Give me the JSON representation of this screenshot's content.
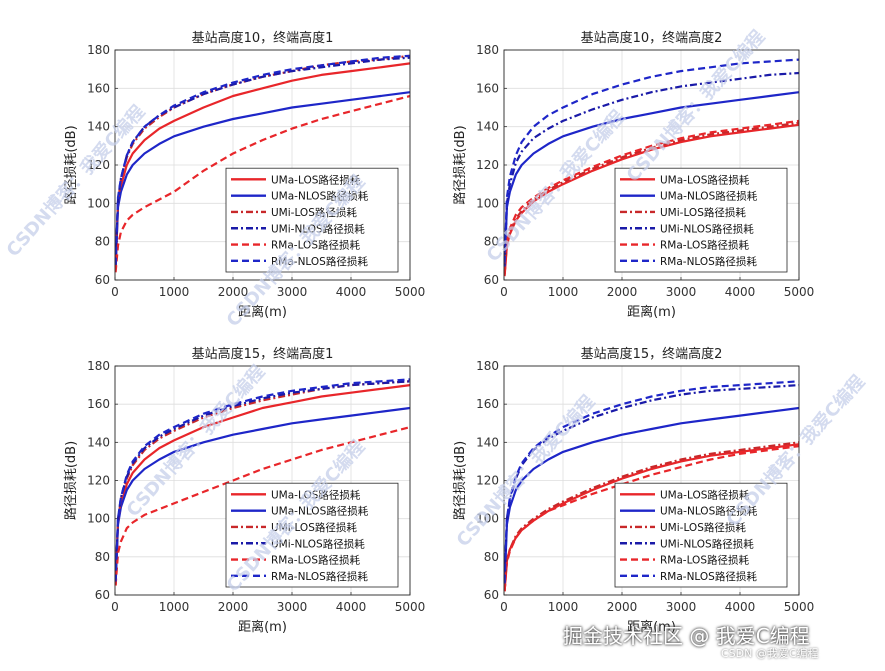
{
  "chart_data": [
    {
      "type": "line",
      "title": "基站高度10，终端高度1",
      "xlabel": "距离(m)",
      "ylabel": "路径损耗(dB)",
      "xlim": [
        0,
        5000
      ],
      "ylim": [
        60,
        180
      ],
      "xticks": [
        "0",
        "1000",
        "2000",
        "3000",
        "4000",
        "5000"
      ],
      "yticks": [
        "60",
        "80",
        "100",
        "120",
        "140",
        "160",
        "180"
      ],
      "grid": true,
      "legend_position": "bottom-right",
      "x": [
        10,
        50,
        100,
        200,
        300,
        500,
        750,
        1000,
        1500,
        2000,
        2500,
        3000,
        3500,
        4000,
        4500,
        5000
      ],
      "series": [
        {
          "name": "UMa-LOS路径损耗",
          "color": "#e8262a",
          "style": "solid",
          "values": [
            66,
            100,
            109,
            120,
            126,
            133,
            139,
            143,
            150,
            156,
            160,
            164,
            167,
            169,
            171,
            173
          ]
        },
        {
          "name": "UMa-NLOS路径损耗",
          "color": "#1e26c8",
          "style": "solid",
          "values": [
            67,
            98,
            106,
            115,
            120,
            126,
            131,
            135,
            140,
            144,
            147,
            150,
            152,
            154,
            156,
            158
          ]
        },
        {
          "name": "UMi-LOS路径损耗",
          "color": "#c8282a",
          "style": "dashdot",
          "values": [
            67,
            101,
            112,
            124,
            131,
            139,
            145,
            150,
            157,
            162,
            166,
            169,
            172,
            174,
            175,
            177
          ]
        },
        {
          "name": "UMi-NLOS路径损耗",
          "color": "#1a1aa8",
          "style": "dashdot",
          "values": [
            68,
            102,
            113,
            125,
            132,
            140,
            146,
            150,
            157,
            162,
            166,
            169,
            171,
            173,
            175,
            176
          ]
        },
        {
          "name": "RMa-LOS路径损耗",
          "color": "#e8262a",
          "style": "dashed",
          "values": [
            64,
            78,
            85,
            91,
            94,
            98,
            102,
            106,
            117,
            126,
            133,
            139,
            144,
            148,
            152,
            156
          ]
        },
        {
          "name": "RMa-NLOS路径损耗",
          "color": "#1e26c8",
          "style": "dashed",
          "values": [
            68,
            103,
            113,
            125,
            132,
            140,
            146,
            151,
            158,
            163,
            167,
            170,
            172,
            174,
            176,
            177
          ]
        }
      ]
    },
    {
      "type": "line",
      "title": "基站高度10，终端高度2",
      "xlabel": "距离(m)",
      "ylabel": "路径损耗(dB)",
      "xlim": [
        0,
        5000
      ],
      "ylim": [
        60,
        180
      ],
      "xticks": [
        "0",
        "1000",
        "2000",
        "3000",
        "4000",
        "5000"
      ],
      "yticks": [
        "60",
        "80",
        "100",
        "120",
        "140",
        "160",
        "180"
      ],
      "grid": true,
      "legend_position": "bottom-right",
      "x": [
        10,
        50,
        100,
        200,
        300,
        500,
        750,
        1000,
        1500,
        2000,
        2500,
        3000,
        3500,
        4000,
        4500,
        5000
      ],
      "series": [
        {
          "name": "UMa-LOS路径损耗",
          "color": "#e8262a",
          "style": "solid",
          "values": [
            62,
            78,
            84,
            91,
            95,
            101,
            106,
            110,
            117,
            123,
            128,
            132,
            135,
            137,
            139,
            141
          ]
        },
        {
          "name": "UMa-NLOS路径损耗",
          "color": "#1e26c8",
          "style": "solid",
          "values": [
            67,
            98,
            106,
            115,
            120,
            126,
            131,
            135,
            140,
            144,
            147,
            150,
            152,
            154,
            156,
            158
          ]
        },
        {
          "name": "UMi-LOS路径损耗",
          "color": "#c8282a",
          "style": "dashdot",
          "values": [
            63,
            79,
            85,
            92,
            96,
            102,
            107,
            111,
            118,
            124,
            129,
            133,
            136,
            138,
            140,
            142
          ]
        },
        {
          "name": "UMi-NLOS路径损耗",
          "color": "#1a1aa8",
          "style": "dashdot",
          "values": [
            68,
            100,
            110,
            121,
            127,
            134,
            139,
            143,
            149,
            154,
            158,
            161,
            163,
            165,
            167,
            168
          ]
        },
        {
          "name": "RMa-LOS路径损耗",
          "color": "#e8262a",
          "style": "dashed",
          "values": [
            63,
            80,
            87,
            94,
            98,
            103,
            108,
            112,
            119,
            125,
            130,
            134,
            137,
            139,
            141,
            143
          ]
        },
        {
          "name": "RMa-NLOS路径损耗",
          "color": "#1e26c8",
          "style": "dashed",
          "values": [
            69,
            103,
            114,
            125,
            132,
            140,
            146,
            150,
            157,
            162,
            166,
            169,
            171,
            173,
            174,
            175
          ]
        }
      ]
    },
    {
      "type": "line",
      "title": "基站高度15，终端高度1",
      "xlabel": "距离(m)",
      "ylabel": "路径损耗(dB)",
      "xlim": [
        0,
        5000
      ],
      "ylim": [
        60,
        180
      ],
      "xticks": [
        "0",
        "1000",
        "2000",
        "3000",
        "4000",
        "5000"
      ],
      "yticks": [
        "60",
        "80",
        "100",
        "120",
        "140",
        "160",
        "180"
      ],
      "grid": true,
      "legend_position": "bottom-right",
      "x": [
        10,
        50,
        100,
        200,
        300,
        500,
        750,
        1000,
        1500,
        2000,
        2500,
        3000,
        3500,
        4000,
        4500,
        5000
      ],
      "series": [
        {
          "name": "UMa-LOS路径损耗",
          "color": "#e8262a",
          "style": "solid",
          "values": [
            65,
            98,
            107,
            118,
            124,
            131,
            137,
            141,
            148,
            153,
            158,
            161,
            164,
            166,
            168,
            170
          ]
        },
        {
          "name": "UMa-NLOS路径损耗",
          "color": "#1e26c8",
          "style": "solid",
          "values": [
            66,
            97,
            106,
            115,
            120,
            126,
            131,
            135,
            140,
            144,
            147,
            150,
            152,
            154,
            156,
            158
          ]
        },
        {
          "name": "UMi-LOS路径损耗",
          "color": "#c8282a",
          "style": "dashdot",
          "values": [
            66,
            99,
            110,
            121,
            128,
            136,
            142,
            146,
            153,
            158,
            162,
            165,
            168,
            170,
            171,
            172
          ]
        },
        {
          "name": "UMi-NLOS路径损耗",
          "color": "#1a1aa8",
          "style": "dashdot",
          "values": [
            67,
            100,
            111,
            122,
            129,
            137,
            143,
            147,
            154,
            159,
            163,
            166,
            168,
            170,
            171,
            172
          ]
        },
        {
          "name": "RMa-LOS路径损耗",
          "color": "#e8262a",
          "style": "dashed",
          "values": [
            65,
            82,
            88,
            95,
            98,
            102,
            105,
            108,
            114,
            120,
            126,
            131,
            136,
            140,
            144,
            148
          ]
        },
        {
          "name": "RMa-NLOS路径损耗",
          "color": "#1e26c8",
          "style": "dashed",
          "values": [
            67,
            100,
            111,
            123,
            130,
            138,
            144,
            148,
            155,
            160,
            164,
            167,
            169,
            171,
            172,
            173
          ]
        }
      ]
    },
    {
      "type": "line",
      "title": "基站高度15，终端高度2",
      "xlabel": "距离(m)",
      "ylabel": "路径损耗(dB)",
      "xlim": [
        0,
        5000
      ],
      "ylim": [
        60,
        180
      ],
      "xticks": [
        "0",
        "1000",
        "2000",
        "3000",
        "4000",
        "5000"
      ],
      "yticks": [
        "60",
        "80",
        "100",
        "120",
        "140",
        "160",
        "180"
      ],
      "grid": true,
      "legend_position": "bottom-right",
      "x": [
        10,
        50,
        100,
        200,
        300,
        500,
        750,
        1000,
        1500,
        2000,
        2500,
        3000,
        3500,
        4000,
        4500,
        5000
      ],
      "series": [
        {
          "name": "UMa-LOS路径损耗",
          "color": "#e8262a",
          "style": "solid",
          "values": [
            62,
            78,
            84,
            90,
            94,
            99,
            104,
            108,
            115,
            121,
            126,
            130,
            133,
            135,
            137,
            139
          ]
        },
        {
          "name": "UMa-NLOS路径损耗",
          "color": "#1e26c8",
          "style": "solid",
          "values": [
            66,
            97,
            106,
            115,
            120,
            126,
            131,
            135,
            140,
            144,
            147,
            150,
            152,
            154,
            156,
            158
          ]
        },
        {
          "name": "UMi-LOS路径损耗",
          "color": "#c8282a",
          "style": "dashdot",
          "values": [
            62,
            78,
            84,
            91,
            95,
            100,
            105,
            109,
            116,
            122,
            127,
            131,
            134,
            136,
            138,
            140
          ]
        },
        {
          "name": "UMi-NLOS路径损耗",
          "color": "#1a1aa8",
          "style": "dashdot",
          "values": [
            67,
            100,
            110,
            121,
            128,
            136,
            142,
            146,
            153,
            158,
            162,
            165,
            167,
            168,
            169,
            170
          ]
        },
        {
          "name": "RMa-LOS路径损耗",
          "color": "#e8262a",
          "style": "dashed",
          "values": [
            62,
            77,
            83,
            90,
            94,
            99,
            104,
            107,
            113,
            118,
            123,
            127,
            131,
            134,
            136,
            138
          ]
        },
        {
          "name": "RMa-NLOS路径损耗",
          "color": "#1e26c8",
          "style": "dashed",
          "values": [
            67,
            100,
            111,
            122,
            129,
            137,
            143,
            148,
            155,
            160,
            164,
            167,
            169,
            170,
            171,
            172
          ]
        }
      ]
    }
  ],
  "watermarks": [
    "CSDN博客：我爱C编程",
    "CSDN博客：我爱C编程",
    "CSDN博客：我爱C编程",
    "CSDN博客：我爱C编程",
    "CSDN博客：我爱C编程",
    "CSDN博客：我爱C编程",
    "CSDN博客：我爱C编程",
    "CSDN博客：我爱C编程"
  ],
  "footer": {
    "brand": "掘金技术社区 @ 我爱C编程",
    "sub": "CSDN @我爱C编程"
  }
}
